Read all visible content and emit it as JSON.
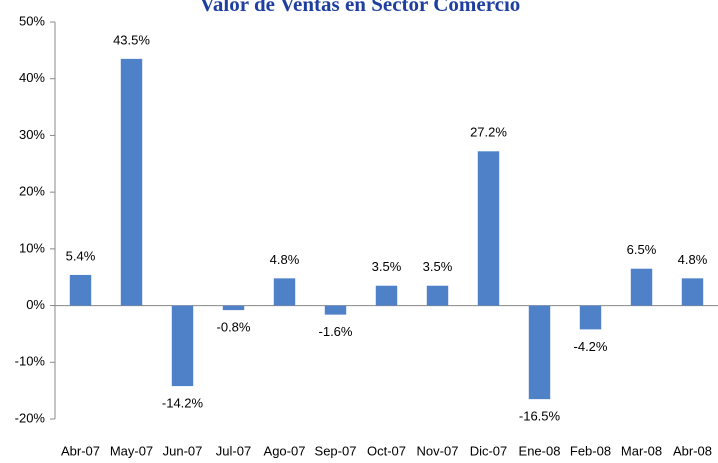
{
  "chart_data": {
    "type": "bar",
    "title": "Valor de Ventas en Sector Comercio",
    "categories": [
      "Abr-07",
      "May-07",
      "Jun-07",
      "Jul-07",
      "Ago-07",
      "Sep-07",
      "Oct-07",
      "Nov-07",
      "Dic-07",
      "Ene-08",
      "Feb-08",
      "Mar-08",
      "Abr-08"
    ],
    "values": [
      5.4,
      43.5,
      -14.2,
      -0.8,
      4.8,
      -1.6,
      3.5,
      3.5,
      27.2,
      -16.5,
      -4.2,
      6.5,
      4.8
    ],
    "value_labels": [
      "5.4%",
      "43.5%",
      "-14.2%",
      "-0.8%",
      "4.8%",
      "-1.6%",
      "3.5%",
      "3.5%",
      "27.2%",
      "-16.5%",
      "-4.2%",
      "6.5%",
      "4.8%"
    ],
    "color": "#4f81c9",
    "ylim": [
      -20,
      50
    ],
    "yticks": [
      {
        "value": -20,
        "label": "-20%"
      },
      {
        "value": -10,
        "label": "-10%"
      },
      {
        "value": 0,
        "label": "0%"
      },
      {
        "value": 10,
        "label": "10%"
      },
      {
        "value": 20,
        "label": "20%"
      },
      {
        "value": 30,
        "label": "30%"
      },
      {
        "value": 40,
        "label": "40%"
      },
      {
        "value": 50,
        "label": "50%"
      }
    ],
    "grid": false
  }
}
